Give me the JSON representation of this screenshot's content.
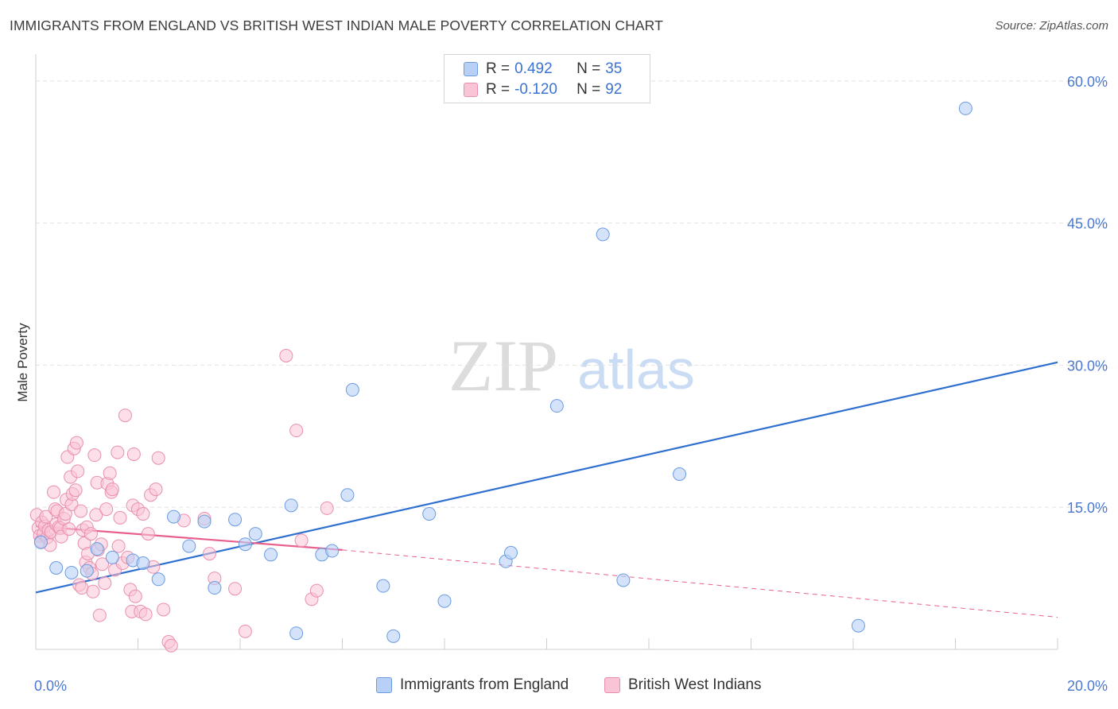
{
  "title": "IMMIGRANTS FROM ENGLAND VS BRITISH WEST INDIAN MALE POVERTY CORRELATION CHART",
  "source": "Source: ZipAtlas.com",
  "watermark": {
    "zip": "ZIP",
    "atlas": "atlas"
  },
  "stats": [
    {
      "r_label": "R =",
      "r_value": "0.492",
      "n_label": "N =",
      "n_value": "35"
    },
    {
      "r_label": "R =",
      "r_value": "-0.120",
      "n_label": "N =",
      "n_value": "92"
    }
  ],
  "legend": [
    {
      "label": "Immigrants from England"
    },
    {
      "label": "British West Indians"
    }
  ],
  "colors": {
    "blue_fill": "#b8d0f5",
    "blue_stroke": "#6b9be0",
    "blue_line": "#2f6fd0",
    "pink_fill": "#f9c4d5",
    "pink_stroke": "#e98fae",
    "pink_line": "#e8608e",
    "tick_label": "#4a78d0",
    "grid": "#e2e2e2"
  },
  "chart_data": {
    "type": "scatter",
    "title": "IMMIGRANTS FROM ENGLAND VS BRITISH WEST INDIAN MALE POVERTY CORRELATION CHART",
    "xlabel": "",
    "ylabel": "Male Poverty",
    "xlim": [
      0,
      20
    ],
    "ylim": [
      0,
      62
    ],
    "x_tick_labels": [
      {
        "value": 0,
        "label": "0.0%"
      },
      {
        "value": 20,
        "label": "20.0%"
      }
    ],
    "y_tick_labels": [
      {
        "value": 15,
        "label": "15.0%"
      },
      {
        "value": 30,
        "label": "30.0%"
      },
      {
        "value": 45,
        "label": "45.0%"
      },
      {
        "value": 60,
        "label": "60.0%"
      }
    ],
    "x_minor_ticks": [
      2,
      4,
      6,
      8,
      10,
      12,
      14,
      16,
      18,
      20
    ],
    "grid": true,
    "series": [
      {
        "name": "Immigrants from England",
        "points": [
          [
            0.1,
            11.3
          ],
          [
            0.4,
            8.6
          ],
          [
            0.7,
            8.1
          ],
          [
            1.0,
            8.3
          ],
          [
            1.2,
            10.6
          ],
          [
            1.5,
            9.7
          ],
          [
            1.9,
            9.4
          ],
          [
            2.1,
            9.1
          ],
          [
            2.4,
            7.4
          ],
          [
            2.7,
            14.0
          ],
          [
            3.0,
            10.9
          ],
          [
            3.3,
            13.5
          ],
          [
            3.5,
            6.5
          ],
          [
            3.9,
            13.7
          ],
          [
            4.1,
            11.1
          ],
          [
            4.3,
            12.2
          ],
          [
            4.6,
            10.0
          ],
          [
            5.0,
            15.2
          ],
          [
            5.1,
            1.7
          ],
          [
            5.6,
            10.0
          ],
          [
            5.8,
            10.4
          ],
          [
            6.1,
            16.3
          ],
          [
            6.2,
            27.4
          ],
          [
            6.8,
            6.7
          ],
          [
            7.0,
            1.4
          ],
          [
            7.7,
            14.3
          ],
          [
            8.0,
            5.1
          ],
          [
            9.2,
            9.3
          ],
          [
            9.3,
            10.2
          ],
          [
            10.2,
            25.7
          ],
          [
            11.1,
            43.8
          ],
          [
            11.5,
            7.3
          ],
          [
            12.6,
            18.5
          ],
          [
            16.1,
            2.5
          ],
          [
            18.2,
            57.1
          ]
        ]
      },
      {
        "name": "British West Indians",
        "points": [
          [
            0.02,
            14.2
          ],
          [
            0.05,
            12.8
          ],
          [
            0.08,
            12.0
          ],
          [
            0.1,
            11.4
          ],
          [
            0.12,
            13.4
          ],
          [
            0.15,
            12.2
          ],
          [
            0.18,
            13.0
          ],
          [
            0.2,
            14.0
          ],
          [
            0.22,
            11.8
          ],
          [
            0.25,
            12.6
          ],
          [
            0.28,
            11.0
          ],
          [
            0.3,
            12.4
          ],
          [
            0.35,
            16.6
          ],
          [
            0.38,
            14.8
          ],
          [
            0.4,
            13.2
          ],
          [
            0.42,
            14.6
          ],
          [
            0.45,
            12.9
          ],
          [
            0.48,
            12.8
          ],
          [
            0.5,
            11.9
          ],
          [
            0.55,
            13.8
          ],
          [
            0.58,
            14.3
          ],
          [
            0.6,
            15.8
          ],
          [
            0.62,
            20.3
          ],
          [
            0.65,
            12.7
          ],
          [
            0.68,
            18.2
          ],
          [
            0.7,
            15.3
          ],
          [
            0.72,
            16.4
          ],
          [
            0.75,
            21.2
          ],
          [
            0.78,
            16.8
          ],
          [
            0.8,
            21.8
          ],
          [
            0.82,
            18.8
          ],
          [
            0.85,
            6.8
          ],
          [
            0.88,
            14.6
          ],
          [
            0.9,
            6.5
          ],
          [
            0.92,
            12.6
          ],
          [
            0.95,
            11.2
          ],
          [
            0.98,
            9.2
          ],
          [
            1.0,
            12.9
          ],
          [
            1.02,
            10.1
          ],
          [
            1.05,
            8.6
          ],
          [
            1.08,
            12.2
          ],
          [
            1.1,
            8.0
          ],
          [
            1.12,
            6.1
          ],
          [
            1.15,
            20.5
          ],
          [
            1.18,
            14.2
          ],
          [
            1.2,
            17.6
          ],
          [
            1.22,
            10.5
          ],
          [
            1.25,
            3.6
          ],
          [
            1.28,
            11.1
          ],
          [
            1.3,
            9.0
          ],
          [
            1.35,
            7.0
          ],
          [
            1.38,
            14.8
          ],
          [
            1.4,
            17.5
          ],
          [
            1.45,
            18.6
          ],
          [
            1.48,
            16.6
          ],
          [
            1.5,
            16.9
          ],
          [
            1.55,
            8.4
          ],
          [
            1.6,
            20.8
          ],
          [
            1.62,
            10.9
          ],
          [
            1.65,
            13.9
          ],
          [
            1.7,
            9.1
          ],
          [
            1.75,
            24.7
          ],
          [
            1.8,
            9.7
          ],
          [
            1.85,
            6.3
          ],
          [
            1.88,
            4.0
          ],
          [
            1.9,
            15.2
          ],
          [
            1.92,
            20.6
          ],
          [
            1.95,
            5.6
          ],
          [
            2.0,
            14.8
          ],
          [
            2.05,
            4.0
          ],
          [
            2.1,
            14.3
          ],
          [
            2.15,
            3.7
          ],
          [
            2.2,
            12.2
          ],
          [
            2.25,
            16.3
          ],
          [
            2.3,
            8.7
          ],
          [
            2.35,
            16.9
          ],
          [
            2.4,
            20.2
          ],
          [
            2.5,
            4.2
          ],
          [
            2.6,
            0.8
          ],
          [
            2.65,
            0.4
          ],
          [
            2.9,
            13.6
          ],
          [
            3.3,
            13.8
          ],
          [
            3.4,
            10.1
          ],
          [
            3.5,
            7.5
          ],
          [
            3.9,
            6.4
          ],
          [
            4.1,
            1.9
          ],
          [
            4.9,
            31.0
          ],
          [
            5.1,
            23.1
          ],
          [
            5.2,
            11.5
          ],
          [
            5.4,
            5.3
          ],
          [
            5.5,
            6.2
          ],
          [
            5.7,
            14.9
          ]
        ]
      }
    ],
    "trend_lines": [
      {
        "series": "Immigrants from England",
        "x1": 0,
        "y1": 6.0,
        "x2": 20,
        "y2": 30.3,
        "style": "solid"
      },
      {
        "series": "British West Indians",
        "x1": 0,
        "y1": 13.0,
        "x2": 6.0,
        "y2": 10.5,
        "style": "solid"
      },
      {
        "series": "British West Indians",
        "x1": 6.0,
        "y1": 10.5,
        "x2": 20,
        "y2": 3.4,
        "style": "dashed"
      }
    ]
  }
}
